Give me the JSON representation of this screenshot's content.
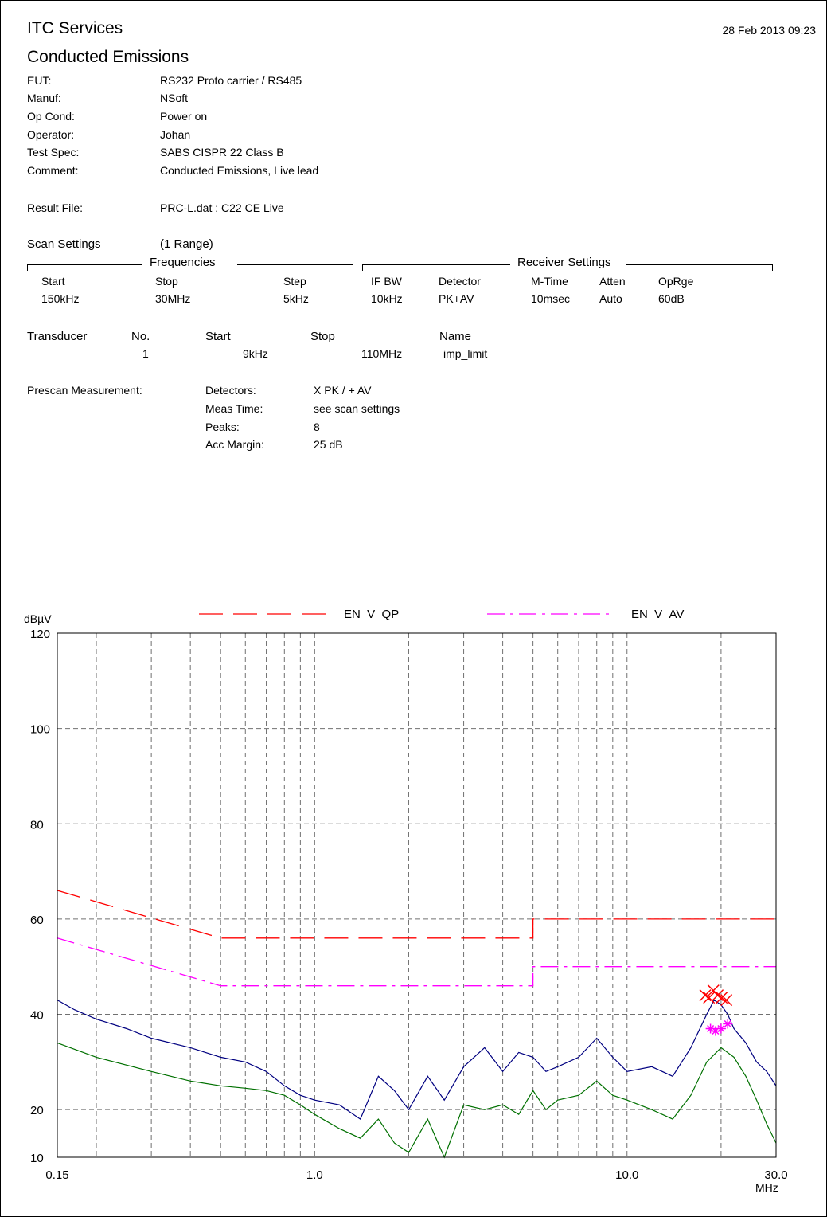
{
  "header": {
    "company": "ITC Services",
    "report_title": "Conducted Emissions",
    "datetime": "28 Feb 2013  09:23"
  },
  "info": [
    {
      "label": "EUT:",
      "value": "RS232 Proto carrier / RS485"
    },
    {
      "label": "Manuf:",
      "value": "NSoft"
    },
    {
      "label": "Op Cond:",
      "value": "Power on"
    },
    {
      "label": "Operator:",
      "value": "Johan"
    },
    {
      "label": "Test Spec:",
      "value": "SABS CISPR 22 Class B"
    },
    {
      "label": "Comment:",
      "value": "Conducted Emissions, Live lead"
    }
  ],
  "result_file": {
    "label": "Result File:",
    "value": "PRC-L.dat :  C22 CE Live"
  },
  "scan_settings": {
    "label": "Scan Settings",
    "ranges": "(1  Range)",
    "frequencies_title": "Frequencies",
    "receiver_title": "Receiver Settings",
    "headers": [
      "Start",
      "Stop",
      "Step",
      "IF BW",
      "Detector",
      "M-Time",
      "Atten",
      "OpRge"
    ],
    "values": [
      "150kHz",
      "30MHz",
      "5kHz",
      "10kHz",
      "PK+AV",
      "10msec",
      "Auto",
      "60dB"
    ]
  },
  "transducer": {
    "label": "Transducer",
    "headers": [
      "No.",
      "Start",
      "Stop",
      "Name"
    ],
    "values": [
      "1",
      "9kHz",
      "110MHz",
      "imp_limit"
    ]
  },
  "prescan": {
    "label": "Prescan Measurement:",
    "rows": [
      {
        "key": "Detectors:",
        "value": "X PK / + AV"
      },
      {
        "key": "Meas Time:",
        "value": "see scan settings"
      },
      {
        "key": "Peaks:",
        "value": "8"
      },
      {
        "key": "Acc Margin:",
        "value": "25 dB"
      }
    ]
  },
  "colors": {
    "qp_limit": "#ff0000",
    "av_limit": "#ff00ff",
    "pk_trace": "#000080",
    "av_trace": "#007000",
    "grid": "#707070"
  },
  "chart_data": {
    "type": "line",
    "xscale": "log",
    "xlim": [
      0.15,
      30
    ],
    "ylim": [
      10,
      120
    ],
    "ylabel": "dBµV",
    "xlabel": "MHz",
    "x_tick_labels": [
      "0.15",
      "1.0",
      "10.0",
      "30.0"
    ],
    "x_tick_values": [
      0.15,
      1.0,
      10.0,
      30.0
    ],
    "y_tick_values": [
      10,
      20,
      40,
      60,
      80,
      100,
      120
    ],
    "grid": true,
    "legend_placement": "top",
    "series": [
      {
        "name": "EN_V_QP",
        "style": "long-dash",
        "color": "#ff0000",
        "x": [
          0.15,
          0.5,
          0.5,
          5.0,
          5.0,
          30.0
        ],
        "y": [
          66,
          56,
          56,
          56,
          60,
          60
        ]
      },
      {
        "name": "EN_V_AV",
        "style": "dash-dot",
        "color": "#ff00ff",
        "x": [
          0.15,
          0.5,
          0.5,
          5.0,
          5.0,
          30.0
        ],
        "y": [
          56,
          46,
          46,
          46,
          50,
          50
        ]
      },
      {
        "style": "solid",
        "color": "#000080",
        "x": [
          0.15,
          0.17,
          0.2,
          0.25,
          0.3,
          0.4,
          0.5,
          0.6,
          0.7,
          0.8,
          0.9,
          1.0,
          1.2,
          1.4,
          1.6,
          1.8,
          2.0,
          2.3,
          2.6,
          3.0,
          3.5,
          4.0,
          4.5,
          5.0,
          5.5,
          6.0,
          7.0,
          8.0,
          9.0,
          10.0,
          12.0,
          14.0,
          16.0,
          18.0,
          19.0,
          20.0,
          21.0,
          22.0,
          24.0,
          26.0,
          28.0,
          30.0
        ],
        "y": [
          43,
          41,
          39,
          37,
          35,
          33,
          31,
          30,
          28,
          25,
          23,
          22,
          21,
          18,
          27,
          24,
          20,
          27,
          22,
          29,
          33,
          28,
          32,
          31,
          28,
          29,
          31,
          35,
          31,
          28,
          29,
          27,
          33,
          40,
          43,
          42,
          40,
          37,
          34,
          30,
          28,
          25
        ]
      },
      {
        "style": "solid",
        "color": "#007000",
        "x": [
          0.15,
          0.2,
          0.3,
          0.4,
          0.5,
          0.6,
          0.7,
          0.8,
          0.9,
          1.0,
          1.2,
          1.4,
          1.6,
          1.8,
          2.0,
          2.3,
          2.6,
          3.0,
          3.5,
          4.0,
          4.5,
          5.0,
          5.5,
          6.0,
          7.0,
          8.0,
          9.0,
          10.0,
          12.0,
          14.0,
          16.0,
          18.0,
          20.0,
          22.0,
          24.0,
          26.0,
          28.0,
          30.0
        ],
        "y": [
          34,
          31,
          28,
          26,
          25,
          24.5,
          24,
          23,
          21,
          19,
          16,
          14,
          18,
          13,
          11,
          18,
          10,
          21,
          20,
          21,
          19,
          24,
          20,
          22,
          23,
          26,
          23,
          22,
          20,
          18,
          23,
          30,
          33,
          31,
          27,
          22,
          17,
          13
        ]
      },
      {
        "name": "X PK",
        "style": "markers",
        "color": "#ff0000",
        "x": [
          17.8,
          18.3,
          18.9,
          19.5,
          20.1,
          20.8
        ],
        "y": [
          44,
          43.5,
          45,
          44,
          43.5,
          43
        ]
      },
      {
        "name": "+ AV",
        "style": "markers",
        "color": "#ff00ff",
        "x": [
          18.5,
          19.2,
          20.0,
          21.0
        ],
        "y": [
          37,
          36.5,
          37,
          38
        ]
      }
    ]
  }
}
